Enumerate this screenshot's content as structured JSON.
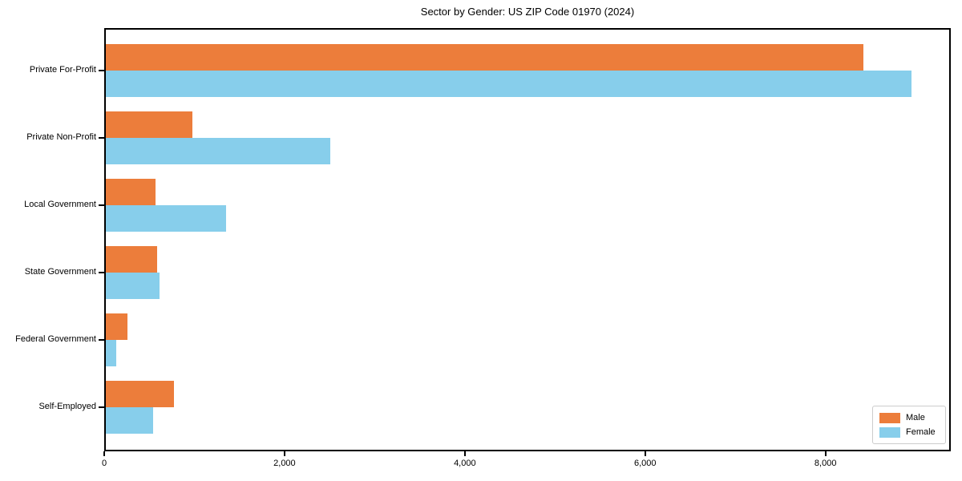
{
  "title": "Sector by Gender: US ZIP Code 01970 (2024)",
  "chart_data": {
    "type": "bar",
    "orientation": "horizontal",
    "title": "Sector by Gender: US ZIP Code 01970 (2024)",
    "categories": [
      "Private For-Profit",
      "Private Non-Profit",
      "Local Government",
      "State Government",
      "Federal Government",
      "Self-Employed"
    ],
    "series": [
      {
        "name": "Male",
        "color": "#EC7D3B",
        "values": [
          8400,
          960,
          550,
          570,
          240,
          755
        ]
      },
      {
        "name": "Female",
        "color": "#87CEEB",
        "values": [
          8940,
          2490,
          1330,
          600,
          115,
          525
        ]
      }
    ],
    "xlabel": "",
    "ylabel": "",
    "xlim": [
      0,
      9390
    ],
    "xticks": [
      0,
      2000,
      4000,
      6000,
      8000
    ],
    "xtick_labels": [
      "0",
      "2,000",
      "4,000",
      "6,000",
      "8,000"
    ],
    "grid": false,
    "legend_position": "lower right",
    "background_color": "#ffffff",
    "spine_color": "#000000"
  }
}
